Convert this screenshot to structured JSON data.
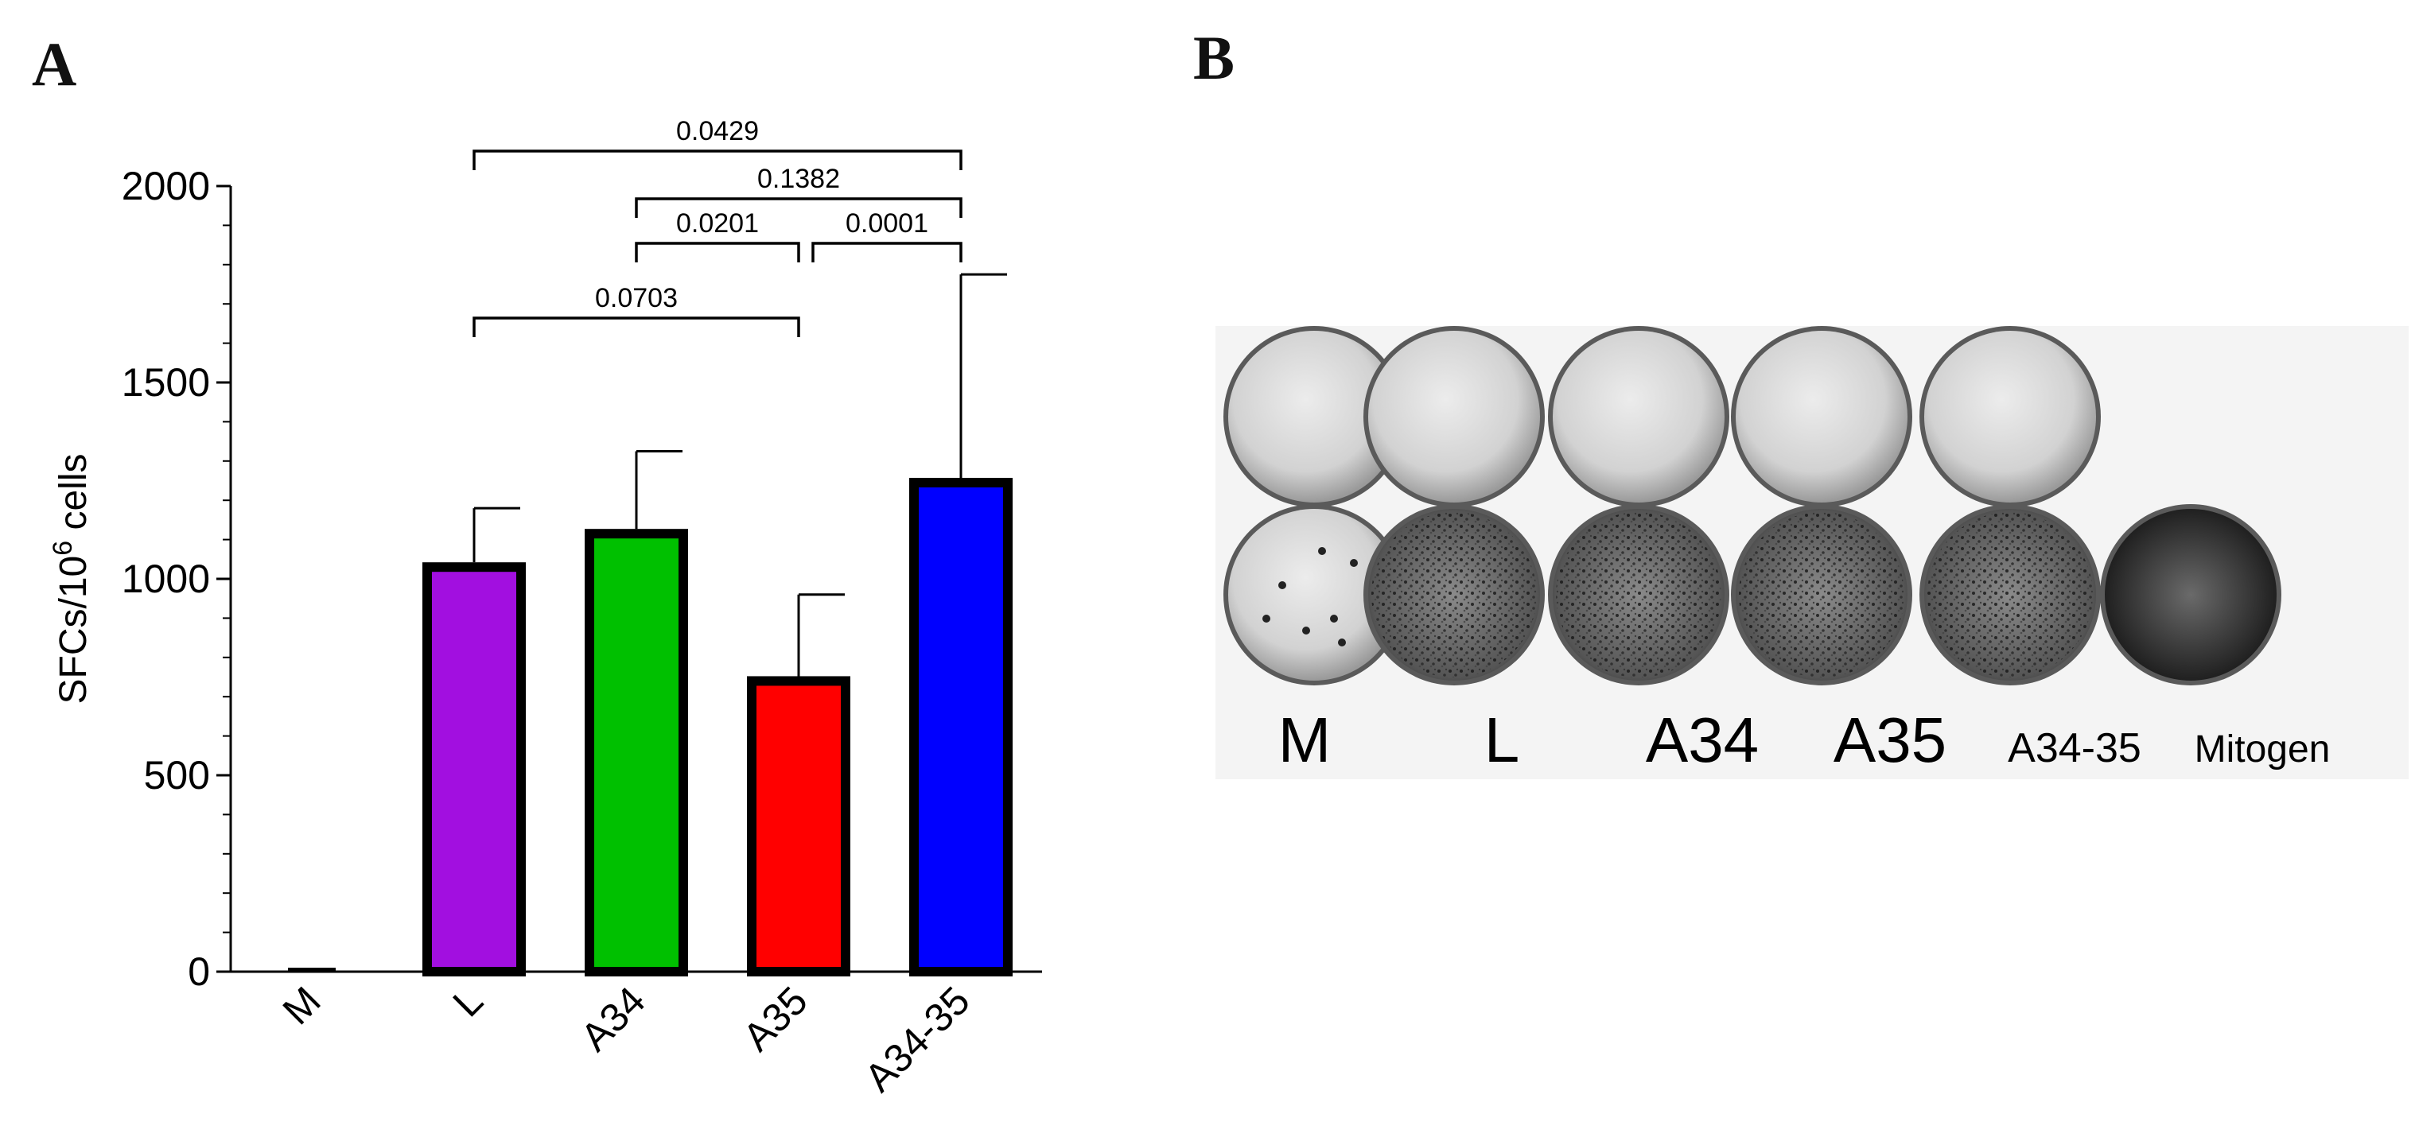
{
  "panel_a": {
    "letter": "A"
  },
  "panel_b": {
    "letter": "B",
    "well_labels": [
      "M",
      "L",
      "A34",
      "A35",
      "A34-35",
      "Mitogen"
    ],
    "rows": [
      {
        "wells": [
          "blank",
          "blank",
          "blank",
          "blank",
          "blank",
          "empty"
        ]
      },
      {
        "wells": [
          "sparse",
          "dense",
          "dense",
          "dense",
          "dense",
          "saturated"
        ]
      }
    ]
  },
  "chart_data": {
    "type": "bar",
    "ylabel": "SFCs/10",
    "ylabel_superscript": "6",
    "ylabel_suffix": " cells",
    "ylim": [
      0,
      2000
    ],
    "yticks": [
      "0",
      "500",
      "1000",
      "1500",
      "2000"
    ],
    "categories": [
      "M",
      "L",
      "A34",
      "A35",
      "A34-35"
    ],
    "values": [
      5,
      1030,
      1115,
      740,
      1245
    ],
    "errors": [
      0,
      150,
      210,
      220,
      530
    ],
    "colors": [
      "#a020f0",
      "#a20fe0",
      "#00c000",
      "#ff0000",
      "#0000ff"
    ],
    "comparisons": [
      {
        "from": 1,
        "to": 4,
        "p": "0.0429"
      },
      {
        "from": 2,
        "to": 4,
        "p": "0.1382"
      },
      {
        "from": 2,
        "to": 3,
        "p": "0.0201"
      },
      {
        "from": 3,
        "to": 4,
        "p": "0.0001"
      },
      {
        "from": 1,
        "to": 3,
        "p": "0.0703"
      }
    ]
  }
}
